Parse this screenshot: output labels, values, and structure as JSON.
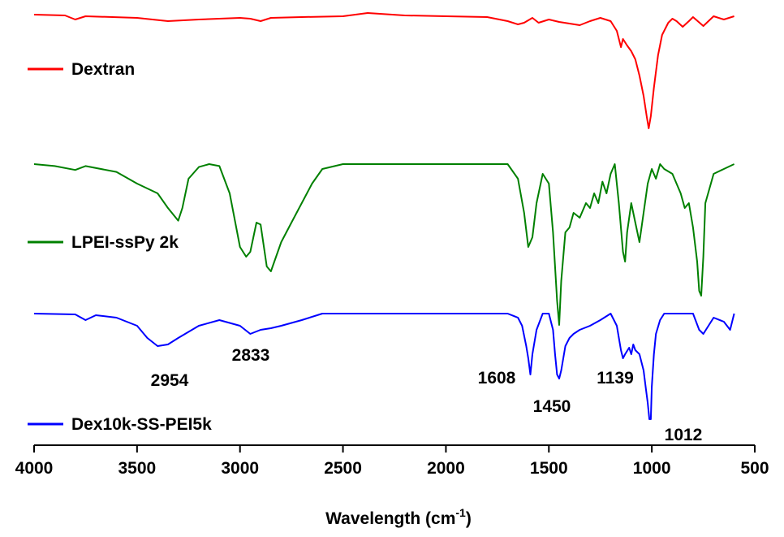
{
  "chart_data": {
    "type": "line",
    "title": "",
    "xlabel": "Wavelength (cm",
    "xlabel_superscript": "-1",
    "xlabel_suffix": ")",
    "ylabel": "",
    "xlim": [
      4000,
      500
    ],
    "x_reversed": true,
    "grid": false,
    "legend_placement": "left, beside each trace",
    "x_ticks": [
      4000,
      3500,
      3000,
      2500,
      2000,
      1500,
      1000,
      500
    ],
    "x_tick_labels": [
      "4000",
      "3500",
      "3000",
      "2500",
      "2000",
      "1500",
      "1000",
      "500"
    ],
    "y_units": "arbitrary (stacked transmittance, 0 = baseline, negative = absorption band depth)",
    "series": [
      {
        "name": "Dextran",
        "color": "#ff0000",
        "legend_label": "Dextran",
        "x": [
          4000,
          3850,
          3800,
          3750,
          3500,
          3350,
          3200,
          3000,
          2950,
          2900,
          2850,
          2700,
          2500,
          2380,
          2200,
          2000,
          1800,
          1700,
          1650,
          1620,
          1580,
          1550,
          1500,
          1450,
          1400,
          1350,
          1300,
          1250,
          1200,
          1170,
          1150,
          1140,
          1120,
          1100,
          1080,
          1060,
          1040,
          1025,
          1015,
          1005,
          990,
          970,
          950,
          920,
          900,
          880,
          850,
          820,
          800,
          750,
          700,
          650,
          600
        ],
        "y": [
          0,
          -1,
          -6,
          -2,
          -4,
          -8,
          -6,
          -4,
          -5,
          -8,
          -4,
          -3,
          -2,
          2,
          -1,
          -2,
          -3,
          -8,
          -12,
          -10,
          -4,
          -10,
          -6,
          -9,
          -11,
          -13,
          -8,
          -4,
          -8,
          -20,
          -40,
          -30,
          -38,
          -45,
          -55,
          -75,
          -100,
          -125,
          -140,
          -125,
          -90,
          -50,
          -25,
          -10,
          -5,
          -8,
          -15,
          -8,
          -3,
          -14,
          -2,
          -6,
          -2
        ]
      },
      {
        "name": "LPEI-ssPy 2k",
        "color": "#008000",
        "legend_label": "LPEI-ssPy 2k",
        "x": [
          4000,
          3900,
          3800,
          3750,
          3600,
          3500,
          3400,
          3350,
          3300,
          3280,
          3250,
          3200,
          3150,
          3100,
          3050,
          3000,
          2970,
          2950,
          2920,
          2900,
          2870,
          2850,
          2800,
          2750,
          2700,
          2650,
          2600,
          2500,
          2000,
          1700,
          1650,
          1620,
          1600,
          1580,
          1560,
          1530,
          1500,
          1480,
          1460,
          1450,
          1440,
          1420,
          1400,
          1380,
          1350,
          1320,
          1300,
          1280,
          1260,
          1240,
          1220,
          1200,
          1180,
          1160,
          1140,
          1130,
          1120,
          1100,
          1080,
          1060,
          1040,
          1020,
          1000,
          980,
          960,
          940,
          900,
          860,
          840,
          820,
          800,
          780,
          770,
          760,
          750,
          740,
          700,
          650,
          600
        ],
        "y": [
          0,
          -2,
          -6,
          -2,
          -8,
          -20,
          -30,
          -45,
          -58,
          -45,
          -15,
          -3,
          0,
          -2,
          -30,
          -85,
          -95,
          -90,
          -60,
          -62,
          -105,
          -110,
          -80,
          -60,
          -40,
          -20,
          -5,
          0,
          0,
          0,
          -15,
          -50,
          -85,
          -75,
          -40,
          -10,
          -20,
          -70,
          -140,
          -165,
          -120,
          -70,
          -65,
          -50,
          -55,
          -40,
          -45,
          -30,
          -40,
          -18,
          -30,
          -10,
          0,
          -40,
          -90,
          -100,
          -70,
          -40,
          -60,
          -80,
          -50,
          -20,
          -5,
          -15,
          0,
          -5,
          -10,
          -30,
          -45,
          -40,
          -65,
          -100,
          -130,
          -135,
          -95,
          -40,
          -10,
          -5,
          0
        ]
      },
      {
        "name": "Dex10k-SS-PEI5k",
        "color": "#0000ff",
        "legend_label": "Dex10k-SS-PEI5k",
        "x": [
          4000,
          3800,
          3750,
          3700,
          3600,
          3500,
          3450,
          3400,
          3350,
          3300,
          3200,
          3100,
          3000,
          2950,
          2900,
          2850,
          2800,
          2700,
          2600,
          2500,
          2000,
          1700,
          1650,
          1630,
          1610,
          1600,
          1590,
          1580,
          1560,
          1530,
          1500,
          1480,
          1470,
          1460,
          1450,
          1440,
          1420,
          1400,
          1380,
          1350,
          1300,
          1250,
          1200,
          1170,
          1150,
          1140,
          1130,
          1110,
          1100,
          1090,
          1080,
          1060,
          1040,
          1030,
          1020,
          1012,
          1005,
          1000,
          990,
          980,
          960,
          940,
          900,
          800,
          770,
          750,
          700,
          650,
          620,
          600
        ],
        "y": [
          0,
          -1,
          -8,
          -2,
          -5,
          -15,
          -30,
          -40,
          -38,
          -30,
          -15,
          -8,
          -15,
          -25,
          -20,
          -18,
          -15,
          -8,
          0,
          0,
          0,
          0,
          -5,
          -15,
          -40,
          -55,
          -75,
          -50,
          -20,
          0,
          0,
          -20,
          -50,
          -75,
          -80,
          -70,
          -40,
          -30,
          -25,
          -20,
          -15,
          -8,
          0,
          -15,
          -45,
          -55,
          -50,
          -42,
          -50,
          -38,
          -45,
          -50,
          -70,
          -90,
          -110,
          -130,
          -130,
          -90,
          -50,
          -25,
          -8,
          0,
          0,
          0,
          -20,
          -25,
          -5,
          -10,
          -20,
          0
        ]
      }
    ],
    "annotations": [
      {
        "text": "2954",
        "series": "Dex10k-SS-PEI5k"
      },
      {
        "text": "2833",
        "series": "Dex10k-SS-PEI5k"
      },
      {
        "text": "1608",
        "series": "Dex10k-SS-PEI5k"
      },
      {
        "text": "1450",
        "series": "Dex10k-SS-PEI5k"
      },
      {
        "text": "1139",
        "series": "Dex10k-SS-PEI5k"
      },
      {
        "text": "1012",
        "series": "Dex10k-SS-PEI5k"
      }
    ]
  }
}
